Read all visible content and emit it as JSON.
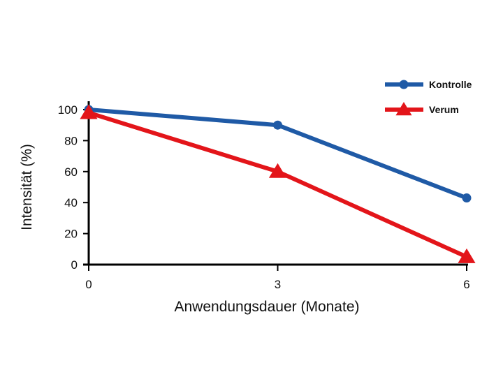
{
  "chart_data": {
    "type": "line",
    "title": "",
    "xlabel": "Anwendungsdauer (Monate)",
    "ylabel": "Intensität (%)",
    "x": [
      0,
      3,
      6
    ],
    "x_ticks": [
      "0",
      "3",
      "6"
    ],
    "y_ticks": [
      "0",
      "20",
      "40",
      "60",
      "80",
      "100"
    ],
    "xlim": [
      0,
      6
    ],
    "ylim": [
      0,
      100
    ],
    "grid": false,
    "legend_position": "top-right",
    "series": [
      {
        "name": "Kontrolle",
        "values": [
          100,
          90,
          43
        ],
        "color": "#1f5aa6",
        "marker": "circle"
      },
      {
        "name": "Verum",
        "values": [
          98,
          60,
          5
        ],
        "color": "#e3151a",
        "marker": "triangle"
      }
    ]
  }
}
